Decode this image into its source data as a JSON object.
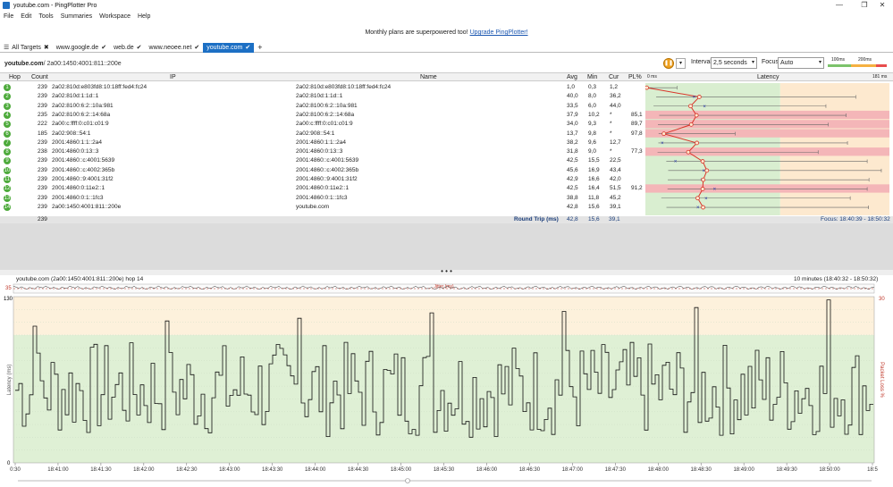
{
  "window": {
    "title": "youtube.com - PingPlotter Pro",
    "minimize": "—",
    "maximize": "❐",
    "close": "✕"
  },
  "menu": [
    "File",
    "Edit",
    "Tools",
    "Summaries",
    "Workspace",
    "Help"
  ],
  "banner": {
    "text": "Monthly plans are superpowered too! ",
    "link": "Upgrade PingPlotter!"
  },
  "tabs": [
    {
      "label": "All Targets",
      "mark": "✖"
    },
    {
      "label": "www.google.de",
      "mark": "✔"
    },
    {
      "label": "web.de",
      "mark": "✔"
    },
    {
      "label": "www.neoee.net",
      "mark": "✔"
    },
    {
      "label": "youtube.com",
      "mark": "✔",
      "active": true
    },
    {
      "label": "+",
      "mark": ""
    }
  ],
  "target": {
    "name": "youtube.com",
    "ip": " / 2a00:1450:4001:811::200e"
  },
  "controls": {
    "interval_label": "Interval",
    "interval_value": "2,5 seconds",
    "focus_label": "Focus",
    "focus_value": "Auto",
    "legend_100": "100ms",
    "legend_200": "200ms"
  },
  "table": {
    "headers": {
      "hop": "Hop",
      "count": "Count",
      "ip": "IP",
      "name": "Name",
      "avg": "Avg",
      "min": "Min",
      "cur": "Cur",
      "pl": "PL%",
      "zero": "0 ms",
      "latency": "Latency",
      "max": "181 ms"
    },
    "rows": [
      {
        "hop": "1",
        "count": "239",
        "ip": "2a02:810d:e803fd8:10:18ff:fed4:fc24",
        "name": "2a02:810d:e803fd8:10:18ff:fed4:fc24",
        "avg": "1,0",
        "min": "0,3",
        "cur": "1,2",
        "pl": ""
      },
      {
        "hop": "2",
        "count": "239",
        "ip": "2a02:810d:1:1d::1",
        "name": "2a02:810d:1:1d::1",
        "avg": "40,0",
        "min": "8,0",
        "cur": "36,2",
        "pl": ""
      },
      {
        "hop": "3",
        "count": "239",
        "ip": "2a02:8100:6:2::10a:981",
        "name": "2a02:8100:6:2::10a:981",
        "avg": "33,5",
        "min": "6,0",
        "cur": "44,0",
        "pl": ""
      },
      {
        "hop": "4",
        "count": "235",
        "ip": "2a02:8100:6:2::14:68a",
        "name": "2a02:8100:6:2::14:68a",
        "avg": "37,9",
        "min": "10,2",
        "cur": "*",
        "pl": "85,1"
      },
      {
        "hop": "5",
        "count": "222",
        "ip": "2a00:c:ffff:0:c01:c01:9",
        "name": "2a00:c:ffff:0:c01:c01:9",
        "avg": "34,0",
        "min": "9,3",
        "cur": "*",
        "pl": "89,7"
      },
      {
        "hop": "6",
        "count": "185",
        "ip": "2a02:908::54:1",
        "name": "2a02:908::54:1",
        "avg": "13,7",
        "min": "9,8",
        "cur": "*",
        "pl": "97,8"
      },
      {
        "hop": "7",
        "count": "239",
        "ip": "2001:4860:1:1::2a4",
        "name": "2001:4860:1:1::2a4",
        "avg": "38,2",
        "min": "9,6",
        "cur": "12,7",
        "pl": ""
      },
      {
        "hop": "8",
        "count": "238",
        "ip": "2001:4860:0:13::3",
        "name": "2001:4860:0:13::3",
        "avg": "31,8",
        "min": "9,0",
        "cur": "*",
        "pl": "77,3"
      },
      {
        "hop": "9",
        "count": "239",
        "ip": "2001:4860::c:4001:5639",
        "name": "2001:4860::c:4001:5639",
        "avg": "42,5",
        "min": "15,5",
        "cur": "22,5",
        "pl": ""
      },
      {
        "hop": "10",
        "count": "239",
        "ip": "2001:4860::c:4002:365b",
        "name": "2001:4860::c:4002:365b",
        "avg": "45,6",
        "min": "16,9",
        "cur": "43,4",
        "pl": ""
      },
      {
        "hop": "11",
        "count": "239",
        "ip": "2001:4860::9:4001:31f2",
        "name": "2001:4860::9:4001:31f2",
        "avg": "42,9",
        "min": "16,6",
        "cur": "42,0",
        "pl": ""
      },
      {
        "hop": "12",
        "count": "239",
        "ip": "2001:4860:0:11e2::1",
        "name": "2001:4860:0:11e2::1",
        "avg": "42,5",
        "min": "16,4",
        "cur": "51,5",
        "pl": "91,2"
      },
      {
        "hop": "13",
        "count": "239",
        "ip": "2001:4860:0:1::1fc3",
        "name": "2001:4860:0:1::1fc3",
        "avg": "38,8",
        "min": "11,8",
        "cur": "45,2",
        "pl": ""
      },
      {
        "hop": "14",
        "count": "239",
        "ip": "2a00:1450:4001:811::200e",
        "name": "youtube.com",
        "avg": "42,8",
        "min": "15,6",
        "cur": "39,1",
        "pl": ""
      }
    ],
    "summary": {
      "count": "239",
      "label": "Round Trip (ms)",
      "avg": "42,8",
      "min": "15,6",
      "cur": "39,1",
      "focus": "Focus: 18:40:39 - 18:50:32"
    }
  },
  "timeline": {
    "header_left": "youtube.com (2a00:1450:4001:811::200e) hop 14",
    "header_right": "10 minutes (18:40:32 - 18:50:32)",
    "jitter_label": "Jitter (ms)",
    "ylabel": "Latency (ms)",
    "y2label": "Packet Loss %",
    "y_top": "130",
    "y_bottom": "0",
    "top_left": "35",
    "top_right": "30",
    "times": [
      "0:30",
      "18:41:00",
      "18:41:30",
      "18:42:00",
      "18:42:30",
      "18:43:00",
      "18:43:30",
      "18:44:00",
      "18:44:30",
      "18:45:00",
      "18:45:30",
      "18:46:00",
      "18:46:30",
      "18:47:00",
      "18:47:30",
      "18:48:00",
      "18:48:30",
      "18:49:00",
      "18:49:30",
      "18:50:00",
      "18:5"
    ]
  },
  "colors": {
    "accent": "#1c6fc4",
    "hop_ok": "#4daa3b",
    "loss_row": "#f4b6b8",
    "latency_green": "#d9eed0",
    "latency_yellow": "#fde9cf",
    "latency_red": "#f6d4d4",
    "line_red": "#d9352a"
  }
}
